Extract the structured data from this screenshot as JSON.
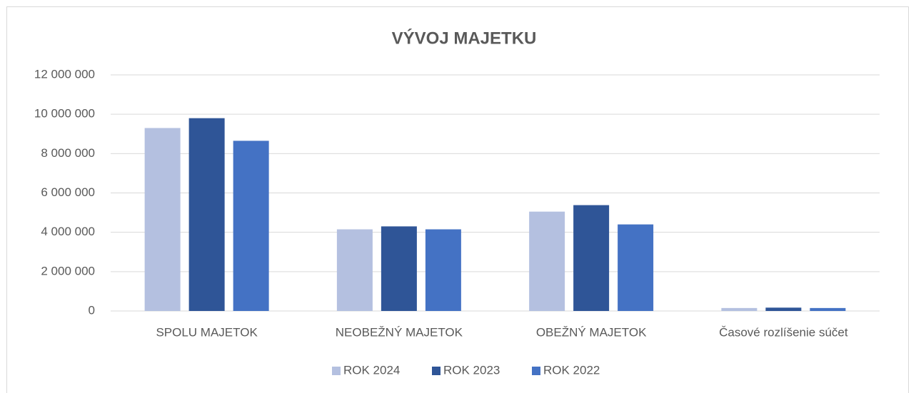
{
  "chart_data": {
    "type": "bar",
    "title": "VÝVOJ MAJETKU",
    "categories": [
      "SPOLU MAJETOK",
      "NEOBEŽNÝ MAJETOK",
      "OBEŽNÝ MAJETOK",
      "Časové rozlíšenie súčet"
    ],
    "series": [
      {
        "name": "ROK 2024",
        "color": "#b4c0e0",
        "values": [
          9300000,
          4150000,
          5050000,
          150000
        ]
      },
      {
        "name": "ROK 2023",
        "color": "#2f5597",
        "values": [
          9800000,
          4300000,
          5380000,
          170000
        ]
      },
      {
        "name": "ROK 2022",
        "color": "#4472c4",
        "values": [
          8650000,
          4150000,
          4400000,
          150000
        ]
      }
    ],
    "ylim": [
      0,
      12000000
    ],
    "yticks": [
      0,
      {
        "value": 2000000,
        "label": "2 000 000"
      },
      {
        "value": 4000000,
        "label": "4 000 000"
      },
      {
        "value": 6000000,
        "label": "6 000 000"
      },
      {
        "value": 8000000,
        "label": "8 000 000"
      },
      {
        "value": 10000000,
        "label": "10 000 000"
      },
      {
        "value": 12000000,
        "label": "12 000 000"
      }
    ],
    "grid": true,
    "legend": "bottom"
  }
}
